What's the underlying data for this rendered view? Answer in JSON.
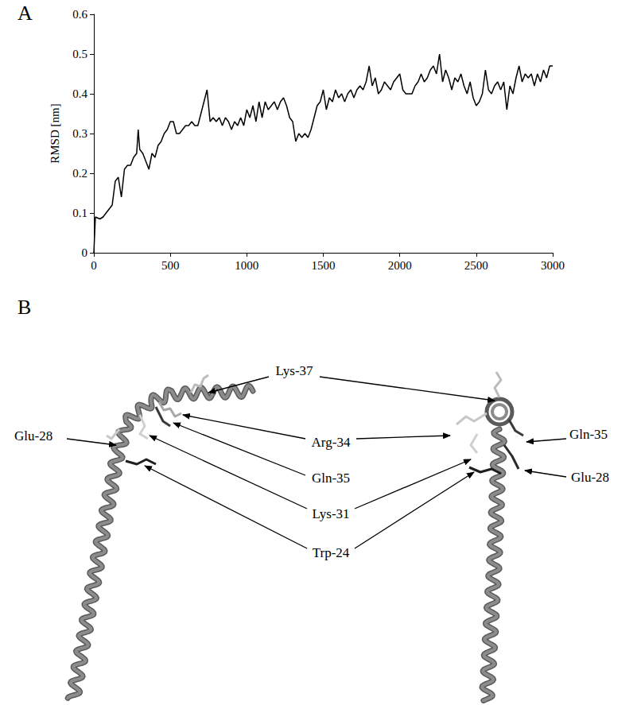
{
  "chart_data": {
    "type": "line",
    "panel": "A",
    "y_label": "RMSD [nm]",
    "x": [
      0,
      10,
      40,
      60,
      80,
      100,
      120,
      140,
      160,
      180,
      200,
      220,
      240,
      260,
      280,
      290,
      300,
      320,
      340,
      360,
      380,
      400,
      420,
      440,
      460,
      480,
      500,
      520,
      540,
      560,
      580,
      600,
      620,
      640,
      660,
      680,
      700,
      720,
      740,
      760,
      780,
      800,
      820,
      840,
      860,
      880,
      900,
      920,
      940,
      960,
      980,
      1000,
      1020,
      1040,
      1060,
      1080,
      1100,
      1120,
      1140,
      1160,
      1180,
      1200,
      1220,
      1240,
      1260,
      1280,
      1300,
      1320,
      1340,
      1360,
      1380,
      1400,
      1420,
      1440,
      1460,
      1480,
      1500,
      1520,
      1540,
      1560,
      1580,
      1600,
      1620,
      1640,
      1660,
      1680,
      1700,
      1720,
      1740,
      1760,
      1780,
      1800,
      1820,
      1840,
      1860,
      1880,
      1900,
      1920,
      1940,
      1960,
      1980,
      2000,
      2020,
      2040,
      2060,
      2080,
      2100,
      2120,
      2140,
      2160,
      2180,
      2200,
      2220,
      2240,
      2260,
      2280,
      2300,
      2320,
      2340,
      2360,
      2380,
      2400,
      2420,
      2440,
      2460,
      2480,
      2500,
      2520,
      2540,
      2560,
      2580,
      2600,
      2620,
      2640,
      2660,
      2680,
      2700,
      2720,
      2740,
      2760,
      2780,
      2800,
      2820,
      2840,
      2860,
      2880,
      2900,
      2920,
      2940,
      2960,
      2980,
      3000
    ],
    "values": [
      0,
      0.09,
      0.085,
      0.09,
      0.1,
      0.11,
      0.12,
      0.18,
      0.19,
      0.14,
      0.21,
      0.22,
      0.22,
      0.24,
      0.25,
      0.31,
      0.26,
      0.25,
      0.23,
      0.21,
      0.25,
      0.24,
      0.27,
      0.28,
      0.3,
      0.31,
      0.33,
      0.33,
      0.3,
      0.3,
      0.31,
      0.32,
      0.32,
      0.33,
      0.32,
      0.32,
      0.35,
      0.38,
      0.41,
      0.33,
      0.34,
      0.33,
      0.34,
      0.32,
      0.34,
      0.33,
      0.31,
      0.33,
      0.32,
      0.34,
      0.32,
      0.36,
      0.34,
      0.37,
      0.33,
      0.38,
      0.34,
      0.38,
      0.36,
      0.37,
      0.38,
      0.36,
      0.38,
      0.39,
      0.37,
      0.34,
      0.33,
      0.28,
      0.3,
      0.29,
      0.3,
      0.29,
      0.31,
      0.34,
      0.37,
      0.38,
      0.41,
      0.36,
      0.39,
      0.38,
      0.41,
      0.39,
      0.4,
      0.38,
      0.4,
      0.41,
      0.39,
      0.41,
      0.42,
      0.41,
      0.43,
      0.47,
      0.42,
      0.44,
      0.4,
      0.41,
      0.43,
      0.42,
      0.41,
      0.43,
      0.44,
      0.45,
      0.41,
      0.4,
      0.4,
      0.4,
      0.42,
      0.43,
      0.45,
      0.43,
      0.44,
      0.46,
      0.47,
      0.45,
      0.5,
      0.43,
      0.46,
      0.44,
      0.41,
      0.44,
      0.43,
      0.45,
      0.42,
      0.4,
      0.43,
      0.39,
      0.37,
      0.38,
      0.4,
      0.46,
      0.41,
      0.4,
      0.42,
      0.43,
      0.41,
      0.43,
      0.36,
      0.42,
      0.4,
      0.44,
      0.47,
      0.43,
      0.45,
      0.44,
      0.45,
      0.42,
      0.45,
      0.43,
      0.46,
      0.44,
      0.47,
      0.47
    ],
    "color": "#000000",
    "xlim": [
      0,
      3000
    ],
    "xticks": [
      0,
      500,
      1000,
      1500,
      2000,
      2500,
      3000
    ],
    "ylim": [
      0,
      0.6
    ],
    "yticks": [
      0,
      0.1,
      0.2,
      0.3,
      0.4,
      0.5,
      0.6
    ],
    "grid": false
  },
  "diagram": {
    "panel": "B",
    "labels": [
      "Lys-37",
      "Glu-28",
      "Arg-34",
      "Gln-35",
      "Lys-31",
      "Trp-24",
      "Gln-35",
      "Glu-28"
    ]
  }
}
